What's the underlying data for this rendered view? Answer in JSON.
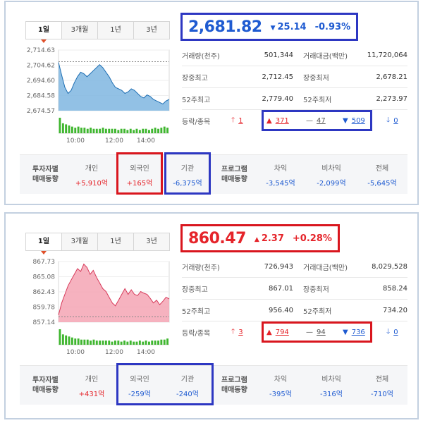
{
  "colors": {
    "up": "#e5242a",
    "down": "#1f5bd1",
    "highlight_red": "#d9161e",
    "highlight_blue": "#2d37c2"
  },
  "tabs": [
    "1일",
    "3개월",
    "1년",
    "3년"
  ],
  "labels": {
    "volume": "거래량(천주)",
    "trade_value": "거래대금(백만)",
    "intraday_high": "장중최고",
    "intraday_low": "장중최저",
    "week52_high": "52주최고",
    "week52_low": "52주최저",
    "updown": "등락/종목",
    "investor_line1": "투자자별",
    "investor_line2": "매매동향",
    "individual": "개인",
    "foreign": "외국인",
    "institution": "기관",
    "program_line1": "프로그램",
    "program_line2": "매매동향",
    "arbitrage": "차익",
    "non_arbitrage": "비차익",
    "total": "전체"
  },
  "markets": [
    {
      "price": "2,681.82",
      "change": "25.14",
      "change_pct": "-0.93%",
      "direction": "down",
      "volume": "501,344",
      "trade_value": "11,720,064",
      "intraday_high": "2,712.45",
      "intraday_low": "2,678.21",
      "week52_high": "2,779.40",
      "week52_low": "2,273.97",
      "upper_limit": "1",
      "advancing": "371",
      "unchanged": "47",
      "declining": "509",
      "lower_limit": "0",
      "individual": "+5,910억",
      "foreign": "+165억",
      "institution": "-6,375억",
      "arbitrage": "-3,545억",
      "non_arbitrage": "-2,099억",
      "total": "-5,645억",
      "chart_data": {
        "type": "area",
        "y_ticks": [
          "2,714.63",
          "2,704.62",
          "2,694.60",
          "2,684.58",
          "2,674.57"
        ],
        "x_ticks": [
          "10:00",
          "12:00",
          "14:00"
        ],
        "ylim": [
          2674.57,
          2714.63
        ],
        "prev_close": 2706.96,
        "values": [
          2706.5,
          2698,
          2690,
          2686,
          2688,
          2693,
          2697,
          2700,
          2699,
          2697,
          2699,
          2701,
          2703,
          2705,
          2703,
          2700,
          2697,
          2693,
          2690,
          2689,
          2688,
          2686,
          2687,
          2689,
          2688,
          2686,
          2684,
          2683,
          2685,
          2684,
          2682,
          2681,
          2680,
          2679,
          2681,
          2682
        ],
        "volume_bars": [
          14,
          9,
          8,
          7,
          6,
          5,
          6,
          5,
          5,
          4,
          5,
          4,
          4,
          4,
          5,
          4,
          4,
          4,
          4,
          3,
          4,
          4,
          3,
          4,
          3,
          4,
          3,
          4,
          4,
          3,
          4,
          5,
          4,
          5,
          6,
          5
        ]
      }
    },
    {
      "price": "860.47",
      "change": "2.37",
      "change_pct": "+0.28%",
      "direction": "up",
      "volume": "726,943",
      "trade_value": "8,029,528",
      "intraday_high": "867.01",
      "intraday_low": "858.24",
      "week52_high": "956.40",
      "week52_low": "734.20",
      "upper_limit": "3",
      "advancing": "794",
      "unchanged": "94",
      "declining": "736",
      "lower_limit": "0",
      "individual": "+431억",
      "foreign": "-259억",
      "institution": "-240억",
      "arbitrage": "-395억",
      "non_arbitrage": "-316억",
      "total": "-710억",
      "chart_data": {
        "type": "area",
        "y_ticks": [
          "867.73",
          "865.08",
          "862.43",
          "859.78",
          "857.14"
        ],
        "x_ticks": [
          "10:00",
          "12:00",
          "14:00"
        ],
        "ylim": [
          857.14,
          867.73
        ],
        "prev_close": 858.1,
        "values": [
          858.4,
          860.5,
          862,
          863.5,
          864.5,
          865.5,
          866.5,
          866,
          867.3,
          866.7,
          865.5,
          866.2,
          865,
          864,
          863,
          862.5,
          861.5,
          860.5,
          860,
          861,
          862,
          863,
          862,
          862.8,
          862,
          861.8,
          862.5,
          862.2,
          862,
          861.3,
          860.5,
          861,
          860.2,
          860.8,
          861.5,
          861.2
        ],
        "volume_bars": [
          15,
          10,
          9,
          8,
          7,
          6,
          6,
          5,
          5,
          5,
          4,
          5,
          4,
          4,
          4,
          4,
          4,
          3,
          4,
          4,
          3,
          4,
          3,
          4,
          3,
          3,
          4,
          3,
          4,
          3,
          4,
          4,
          4,
          5,
          5,
          6
        ]
      }
    }
  ]
}
